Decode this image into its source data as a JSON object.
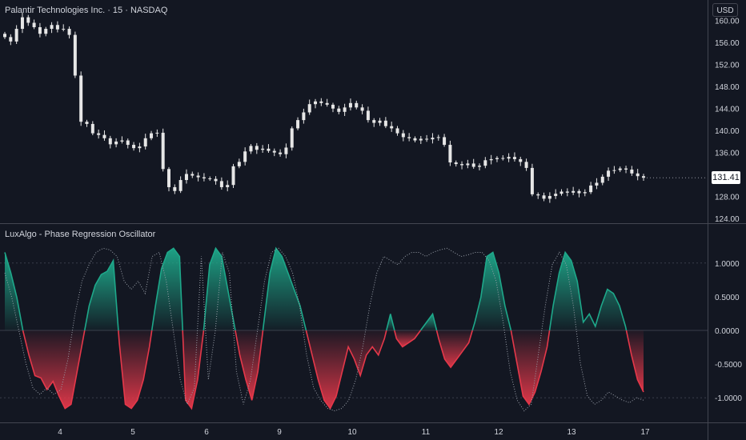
{
  "header": {
    "symbol_title": "Palantir Technologies Inc. · 15 · NASDAQ",
    "currency": "USD"
  },
  "indicator": {
    "title": "LuxAlgo - Phase Regression Oscillator"
  },
  "price_badge": "131.41",
  "colors": {
    "background": "#131722",
    "axis_text": "#d1d4dc",
    "candle": "#e6e6e6",
    "bull": "#1ea88a",
    "bear": "#e5384a",
    "phase_line": "#9aa0aa",
    "divider": "#434651"
  },
  "chart_data": [
    {
      "type": "candlestick",
      "title": "Palantir Technologies Inc. · 15 · NASDAQ",
      "y_ticks": [
        "160.00",
        "156.00",
        "152.00",
        "148.00",
        "144.00",
        "140.00",
        "136.00",
        "132.00",
        "128.00",
        "124.00"
      ],
      "ylim": [
        123,
        162
      ],
      "x_ticks": [
        "4",
        "5",
        "6",
        "9",
        "10",
        "11",
        "12",
        "13",
        "17"
      ],
      "last_price": 131.41,
      "approx_closes": [
        157.0,
        156.2,
        158.5,
        160.6,
        159.6,
        158.8,
        157.6,
        158.5,
        159.2,
        158.4,
        158.5,
        157.4,
        150.0,
        141.6,
        141.2,
        139.5,
        139.2,
        138.6,
        137.5,
        138.0,
        138.2,
        137.4,
        136.8,
        137.1,
        138.6,
        139.5,
        139.6,
        133.0,
        129.7,
        129.0,
        131.0,
        132.1,
        131.8,
        131.5,
        131.3,
        131.2,
        130.8,
        129.7,
        130.1,
        133.5,
        134.3,
        136.2,
        137.2,
        136.5,
        136.7,
        136.3,
        136.0,
        135.7,
        136.9,
        140.4,
        141.9,
        143.3,
        144.8,
        145.3,
        145.0,
        144.7,
        144.0,
        143.4,
        144.2,
        145.0,
        144.2,
        143.6,
        141.9,
        141.4,
        141.8,
        140.8,
        140.4,
        139.5,
        138.8,
        138.6,
        138.2,
        138.5,
        138.4,
        138.7,
        138.8,
        137.4,
        134.2,
        133.9,
        133.7,
        134.0,
        133.4,
        133.6,
        134.6,
        134.8,
        135.0,
        134.9,
        135.2,
        134.8,
        134.3,
        133.2,
        128.4,
        128.2,
        127.6,
        128.1,
        128.5,
        128.9,
        128.7,
        129.0,
        128.6,
        128.8,
        130.0,
        130.5,
        131.6,
        132.7,
        132.8,
        133.1,
        132.9,
        132.2,
        131.7,
        131.41
      ]
    },
    {
      "type": "line",
      "title": "LuxAlgo - Phase Regression Oscillator",
      "y_ticks": [
        "1.0000",
        "0.5000",
        "0.0000",
        "-0.5000",
        "-1.0000"
      ],
      "ylim": [
        -1.12,
        1.12
      ],
      "x_ticks": [
        "4",
        "5",
        "6",
        "9",
        "10",
        "11",
        "12",
        "13",
        "17"
      ],
      "series": [
        {
          "role": "oscillator",
          "values": [
            0.95,
            0.7,
            0.4,
            0.0,
            -0.3,
            -0.55,
            -0.58,
            -0.72,
            -0.62,
            -0.8,
            -0.95,
            -0.9,
            -0.5,
            -0.1,
            0.3,
            0.55,
            0.68,
            0.72,
            0.85,
            -0.15,
            -0.9,
            -0.95,
            -0.85,
            -0.6,
            -0.2,
            0.3,
            0.75,
            0.95,
            1.0,
            0.9,
            -0.85,
            -0.95,
            -0.6,
            0.0,
            0.8,
            1.0,
            0.9,
            0.5,
            0.1,
            -0.3,
            -0.6,
            -0.85,
            -0.5,
            0.1,
            0.7,
            1.0,
            0.9,
            0.7,
            0.5,
            0.3,
            0.0,
            -0.3,
            -0.6,
            -0.85,
            -0.95,
            -0.8,
            -0.5,
            -0.2,
            -0.35,
            -0.55,
            -0.3,
            -0.2,
            -0.3,
            -0.1,
            0.2,
            -0.1,
            -0.2,
            -0.15,
            -0.1,
            0.0,
            0.1,
            0.2,
            -0.1,
            -0.35,
            -0.45,
            -0.35,
            -0.25,
            -0.15,
            0.1,
            0.4,
            0.9,
            0.95,
            0.7,
            0.3,
            0.0,
            -0.4,
            -0.8,
            -0.9,
            -0.75,
            -0.5,
            -0.2,
            0.3,
            0.7,
            0.95,
            0.85,
            0.6,
            0.1,
            0.2,
            0.05,
            0.3,
            0.5,
            0.45,
            0.3,
            0.05,
            -0.3,
            -0.6,
            -0.75
          ]
        },
        {
          "role": "phase",
          "values": [
            0.7,
            0.4,
            0.0,
            -0.4,
            -0.7,
            -0.78,
            -0.7,
            -0.78,
            -0.72,
            -0.35,
            0.2,
            0.6,
            0.8,
            0.95,
            1.0,
            0.98,
            0.9,
            0.6,
            0.5,
            0.6,
            0.45,
            0.9,
            0.95,
            0.6,
            0.0,
            -0.6,
            -0.9,
            -0.7,
            0.9,
            -0.6,
            0.0,
            0.95,
            0.7,
            -0.5,
            -0.9,
            -0.6,
            0.0,
            0.6,
            0.95,
            1.0,
            0.9,
            0.7,
            0.3,
            -0.3,
            -0.7,
            -0.85,
            -0.95,
            -0.98,
            -0.95,
            -0.85,
            -0.6,
            -0.2,
            0.3,
            0.7,
            0.9,
            0.85,
            0.8,
            0.9,
            0.95,
            0.95,
            0.9,
            0.95,
            0.98,
            1.0,
            0.95,
            0.9,
            0.92,
            0.95,
            0.95,
            0.85,
            0.6,
            0.1,
            -0.5,
            -0.85,
            -0.98,
            -0.9,
            -0.3,
            0.3,
            0.8,
            0.95,
            0.8,
            0.3,
            -0.4,
            -0.8,
            -0.9,
            -0.85,
            -0.75,
            -0.8,
            -0.85,
            -0.88,
            -0.82,
            -0.85
          ]
        }
      ]
    }
  ]
}
